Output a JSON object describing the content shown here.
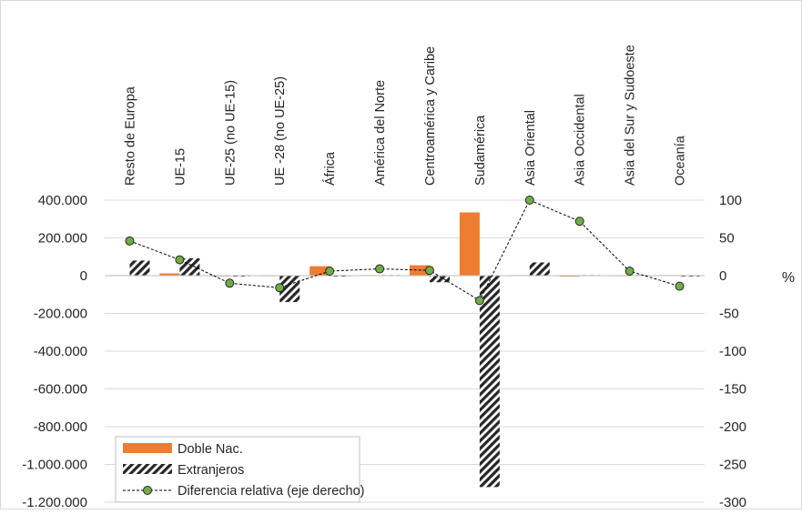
{
  "chart_data": {
    "type": "bar",
    "categories": [
      "Resto de Europa",
      "UE-15",
      "UE-25 (no UE-15)",
      "UE -28 (no UE-25)",
      "África",
      "América del Norte",
      "Centroamérica y Caribe",
      "Sudamérica",
      "Asia Oriental",
      "Asia Occidental",
      "Asia del Sur y Sudoeste",
      "Oceanía"
    ],
    "series": [
      {
        "name": "Doble Nac.",
        "kind": "bar",
        "axis": "left",
        "color": "#ED7D31",
        "values": [
          3000,
          12000,
          1000,
          2000,
          50000,
          3000,
          55000,
          335000,
          3000,
          -5000,
          2000,
          3000
        ]
      },
      {
        "name": "Extranjeros",
        "kind": "bar",
        "axis": "left",
        "pattern": "diagonal-hatch",
        "color": "#262626",
        "values": [
          80000,
          92000,
          -5000,
          -140000,
          -5000,
          3000,
          -35000,
          -1120000,
          70000,
          3000,
          3000,
          -5000
        ]
      },
      {
        "name": "Diferencia relativa (eje derecho)",
        "kind": "line",
        "axis": "right",
        "style": "dashed-with-circle-markers",
        "color": "#000000",
        "marker_color": "#70AD47",
        "values": [
          46,
          21,
          -10,
          -16,
          6,
          9,
          7,
          -33,
          100,
          72,
          6,
          -14
        ]
      }
    ],
    "y_left": {
      "range": [
        -1200000,
        400000
      ],
      "ticks": [
        "400.000",
        "200.000",
        "0",
        "-200.000",
        "-400.000",
        "-600.000",
        "-800.000",
        "-1.000.000",
        "-1.200.000"
      ]
    },
    "y_right": {
      "range": [
        -300,
        100
      ],
      "label": "%",
      "ticks": [
        "100",
        "50",
        "0",
        "-50",
        "-100",
        "-150",
        "-200",
        "-250",
        "-300"
      ]
    },
    "grid": true,
    "legend_position": "bottom-left",
    "category_label_position": "top-rotated"
  }
}
